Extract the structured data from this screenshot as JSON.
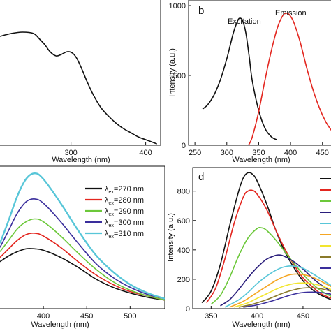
{
  "colors": {
    "black": "#111111",
    "red": "#e3261f",
    "green": "#6cc83a",
    "blue": "#3a2e9c",
    "cyan": "#58c6d8",
    "yellow": "#f2e52e",
    "orange": "#f5a623",
    "olive": "#8a7a2a",
    "indigo": "#2a1e7c"
  },
  "chart_data": [
    {
      "panel": "a",
      "type": "line",
      "title": "",
      "xlabel": "Wavelength (nm)",
      "ylabel": "",
      "xlim": [
        205,
        420
      ],
      "ylim": [
        0,
        1.0
      ],
      "xticks": [
        300,
        400
      ],
      "xtick_labels": [
        "300",
        "400"
      ],
      "yticks": [],
      "series": [
        {
          "x": [
            205,
            220,
            235,
            250,
            258,
            265,
            272,
            280,
            287,
            295,
            302,
            308,
            315,
            322,
            330,
            340,
            350,
            360,
            370,
            380,
            390,
            400,
            410,
            415
          ],
          "y": [
            0.78,
            0.8,
            0.81,
            0.8,
            0.76,
            0.72,
            0.67,
            0.64,
            0.65,
            0.67,
            0.66,
            0.62,
            0.54,
            0.45,
            0.36,
            0.27,
            0.21,
            0.16,
            0.12,
            0.09,
            0.06,
            0.04,
            0.02,
            0.01
          ]
        }
      ]
    },
    {
      "panel": "b",
      "type": "line",
      "title": "",
      "xlabel": "Wavelength (nm)",
      "ylabel": "Intensity (a.u.)",
      "xlim": [
        240,
        470
      ],
      "ylim": [
        0,
        1000
      ],
      "xticks": [
        250,
        300,
        350,
        400,
        450
      ],
      "xtick_labels": [
        "250",
        "300",
        "350",
        "400",
        "450"
      ],
      "yticks": [
        0,
        500,
        1000
      ],
      "ytick_labels": [
        "0",
        "500",
        "1000"
      ],
      "annotations": [
        "Excitation",
        "Emission"
      ],
      "series": [
        {
          "name": "Excitation",
          "x": [
            262,
            270,
            280,
            290,
            300,
            310,
            316,
            320,
            325,
            330,
            335,
            340,
            350,
            360,
            370,
            378
          ],
          "y": [
            260,
            290,
            360,
            470,
            620,
            800,
            880,
            910,
            890,
            800,
            640,
            460,
            250,
            120,
            60,
            40
          ]
        },
        {
          "name": "Emission",
          "x": [
            334,
            340,
            350,
            360,
            370,
            380,
            388,
            393,
            398,
            405,
            415,
            425,
            435,
            445,
            455,
            465
          ],
          "y": [
            0,
            60,
            240,
            470,
            680,
            850,
            930,
            945,
            935,
            880,
            740,
            560,
            400,
            270,
            170,
            100
          ]
        }
      ]
    },
    {
      "panel": "c",
      "type": "line",
      "title": "",
      "xlabel": "Wavelength (nm)",
      "ylabel": "",
      "xlim": [
        350,
        540
      ],
      "ylim": [
        0,
        1.0
      ],
      "xticks": [
        400,
        450,
        500
      ],
      "xtick_labels": [
        "400",
        "450",
        "500"
      ],
      "yticks": [],
      "series": [
        {
          "name": "λex=270 nm",
          "x": [
            350,
            360,
            370,
            380,
            390,
            400,
            420,
            440,
            460,
            480,
            500,
            520,
            540
          ],
          "y": [
            0.33,
            0.37,
            0.4,
            0.42,
            0.42,
            0.41,
            0.36,
            0.29,
            0.21,
            0.15,
            0.11,
            0.08,
            0.06
          ]
        },
        {
          "name": "λex=280 nm",
          "x": [
            350,
            360,
            370,
            380,
            390,
            400,
            420,
            440,
            460,
            480,
            500,
            520,
            540
          ],
          "y": [
            0.36,
            0.42,
            0.48,
            0.52,
            0.53,
            0.51,
            0.43,
            0.33,
            0.24,
            0.17,
            0.12,
            0.09,
            0.06
          ]
        },
        {
          "name": "λex=290 nm",
          "x": [
            350,
            360,
            370,
            380,
            390,
            400,
            420,
            440,
            460,
            480,
            500,
            520,
            540
          ],
          "y": [
            0.4,
            0.48,
            0.56,
            0.61,
            0.63,
            0.61,
            0.51,
            0.39,
            0.28,
            0.19,
            0.13,
            0.09,
            0.06
          ]
        },
        {
          "name": "λex=300 nm",
          "x": [
            350,
            360,
            370,
            380,
            390,
            400,
            420,
            440,
            460,
            480,
            500,
            520,
            540
          ],
          "y": [
            0.43,
            0.55,
            0.67,
            0.75,
            0.77,
            0.74,
            0.61,
            0.46,
            0.32,
            0.22,
            0.15,
            0.1,
            0.07
          ]
        },
        {
          "name": "λex=310 nm",
          "x": [
            350,
            360,
            370,
            380,
            390,
            400,
            420,
            440,
            460,
            480,
            500,
            520,
            540
          ],
          "y": [
            0.46,
            0.62,
            0.79,
            0.91,
            0.95,
            0.91,
            0.74,
            0.55,
            0.38,
            0.26,
            0.17,
            0.11,
            0.07
          ]
        }
      ]
    },
    {
      "panel": "d",
      "type": "line",
      "title": "",
      "xlabel": "Wavelength (nm)",
      "ylabel": "Intensity (a.u.)",
      "xlim": [
        330,
        485
      ],
      "ylim": [
        0,
        960
      ],
      "xticks": [
        350,
        400,
        450
      ],
      "xtick_labels": [
        "350",
        "400",
        "450"
      ],
      "yticks": [
        0,
        200,
        400,
        600,
        800
      ],
      "ytick_labels": [
        "0",
        "200",
        "400",
        "600",
        "800"
      ],
      "series": [
        {
          "x": [
            340,
            350,
            360,
            370,
            380,
            385,
            390,
            395,
            400,
            410,
            420,
            430,
            440,
            450,
            460,
            470,
            485
          ],
          "y": [
            40,
            120,
            300,
            560,
            800,
            890,
            925,
            915,
            870,
            720,
            540,
            390,
            280,
            190,
            130,
            90,
            50
          ]
        },
        {
          "x": [
            345,
            355,
            365,
            375,
            385,
            390,
            395,
            400,
            410,
            420,
            430,
            440,
            450,
            460,
            470,
            485
          ],
          "y": [
            40,
            140,
            340,
            580,
            760,
            800,
            805,
            780,
            680,
            540,
            410,
            300,
            210,
            150,
            100,
            60
          ]
        },
        {
          "x": [
            350,
            360,
            370,
            380,
            390,
            400,
            405,
            410,
            420,
            430,
            440,
            450,
            460,
            470,
            485
          ],
          "y": [
            30,
            90,
            210,
            360,
            480,
            545,
            550,
            535,
            470,
            390,
            310,
            235,
            170,
            120,
            70
          ]
        },
        {
          "x": [
            360,
            370,
            380,
            390,
            400,
            410,
            420,
            425,
            430,
            440,
            450,
            460,
            470,
            485
          ],
          "y": [
            20,
            60,
            130,
            210,
            280,
            335,
            362,
            365,
            355,
            320,
            270,
            210,
            160,
            100
          ]
        },
        {
          "x": [
            365,
            380,
            390,
            400,
            410,
            420,
            430,
            440,
            450,
            460,
            470,
            485
          ],
          "y": [
            10,
            60,
            110,
            170,
            220,
            260,
            285,
            290,
            275,
            240,
            200,
            140
          ]
        },
        {
          "x": [
            370,
            385,
            400,
            410,
            420,
            430,
            440,
            450,
            460,
            470,
            485
          ],
          "y": [
            10,
            50,
            110,
            150,
            190,
            220,
            235,
            232,
            215,
            185,
            135
          ]
        },
        {
          "x": [
            375,
            390,
            400,
            410,
            420,
            430,
            440,
            450,
            460,
            470,
            485
          ],
          "y": [
            10,
            40,
            70,
            100,
            130,
            155,
            170,
            175,
            170,
            155,
            120
          ]
        },
        {
          "x": [
            380,
            395,
            410,
            420,
            430,
            440,
            450,
            460,
            470,
            485
          ],
          "y": [
            10,
            30,
            60,
            85,
            110,
            128,
            140,
            142,
            135,
            110
          ]
        },
        {
          "x": [
            385,
            400,
            415,
            425,
            435,
            445,
            455,
            465,
            475,
            485
          ],
          "y": [
            10,
            25,
            50,
            70,
            90,
            105,
            112,
            112,
            105,
            92
          ]
        }
      ]
    }
  ],
  "legend_c": {
    "items": [
      {
        "pre": "λ",
        "sub": "ex",
        "post": "=270 nm"
      },
      {
        "pre": "λ",
        "sub": "ex",
        "post": "=280 nm"
      },
      {
        "pre": "λ",
        "sub": "ex",
        "post": "=290 nm"
      },
      {
        "pre": "λ",
        "sub": "ex",
        "post": "=300 nm"
      },
      {
        "pre": "λ",
        "sub": "ex",
        "post": "=310 nm"
      }
    ]
  },
  "panel_letters": {
    "b": "b",
    "d": "d"
  }
}
